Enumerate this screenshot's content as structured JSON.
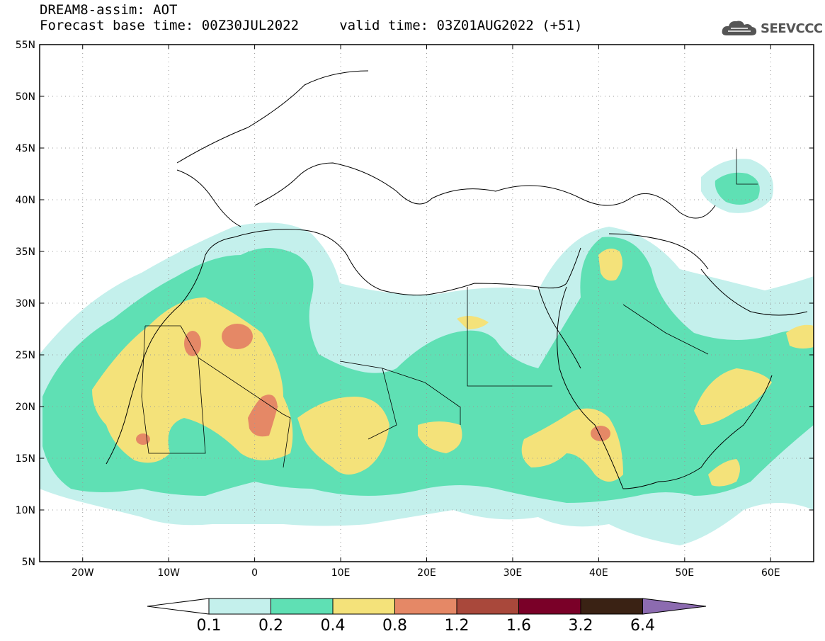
{
  "header": {
    "title": "DREAM8-assim: AOT",
    "subtitle": "Forecast base time: 00Z30JUL2022     valid time: 03Z01AUG2022 (+51)",
    "logo_text": "SEEVCCC"
  },
  "map": {
    "lon_range": [
      -25,
      65
    ],
    "lat_range": [
      5,
      55
    ],
    "lat_labels": [
      "55N",
      "50N",
      "45N",
      "40N",
      "35N",
      "30N",
      "25N",
      "20N",
      "15N",
      "10N",
      "5N"
    ],
    "lon_labels": [
      "20W",
      "10W",
      "0",
      "10E",
      "20E",
      "30E",
      "40E",
      "50E",
      "60E"
    ],
    "grid": "dotted"
  },
  "colorbar": {
    "labels": [
      "0.1",
      "0.2",
      "0.4",
      "0.8",
      "1.2",
      "1.6",
      "3.2",
      "6.4"
    ],
    "colors": [
      "#c4f0ec",
      "#5fe0b4",
      "#f4e27a",
      "#e58866",
      "#a9483b",
      "#7a0028",
      "#3a2214",
      "#8c6bb0"
    ],
    "extend_left_color": "#ffffff"
  },
  "legend_colors": {
    "c1": "#c4f0ec",
    "c2": "#5fe0b4",
    "c3": "#f4e27a",
    "c4": "#e58866"
  }
}
